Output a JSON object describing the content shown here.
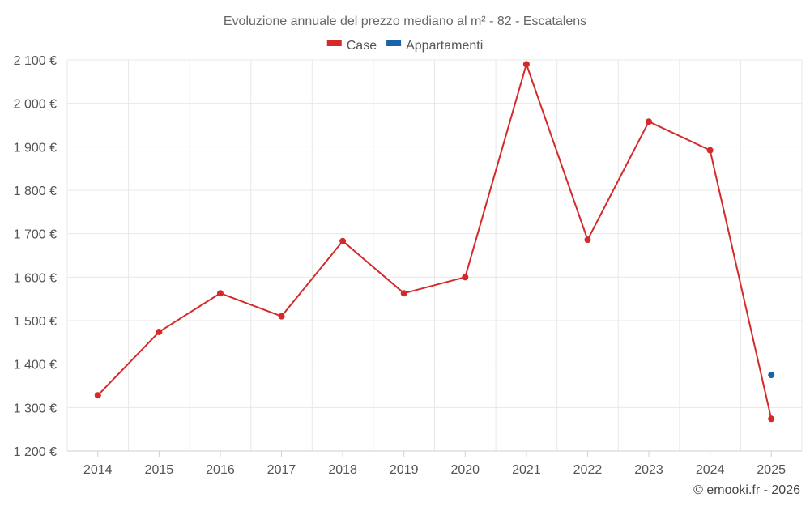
{
  "chart_data": {
    "type": "line",
    "title": "Evoluzione annuale del prezzo mediano al m² - 82 - Escatalens",
    "categories": [
      "2014",
      "2015",
      "2016",
      "2017",
      "2018",
      "2019",
      "2020",
      "2021",
      "2022",
      "2023",
      "2024",
      "2025"
    ],
    "series": [
      {
        "name": "Case",
        "color": "#d42a2a",
        "values": [
          1328,
          1474,
          1563,
          1510,
          1683,
          1563,
          1600,
          2090,
          1686,
          1958,
          1892,
          1274
        ]
      },
      {
        "name": "Appartamenti",
        "color": "#1a63a8",
        "values": [
          null,
          null,
          null,
          null,
          null,
          null,
          null,
          null,
          null,
          null,
          null,
          1375
        ]
      }
    ],
    "y_ticks": [
      1200,
      1300,
      1400,
      1500,
      1600,
      1700,
      1800,
      1900,
      2000,
      2100
    ],
    "y_tick_labels": [
      "1 200 €",
      "1 300 €",
      "1 400 €",
      "1 500 €",
      "1 600 €",
      "1 700 €",
      "1 800 €",
      "1 900 €",
      "2 000 €",
      "2 100 €"
    ],
    "ylim": [
      1200,
      2100
    ],
    "xlabel": "",
    "ylabel": "",
    "legend_position": "top-center",
    "grid": true
  },
  "credit": "© emooki.fr - 2026"
}
